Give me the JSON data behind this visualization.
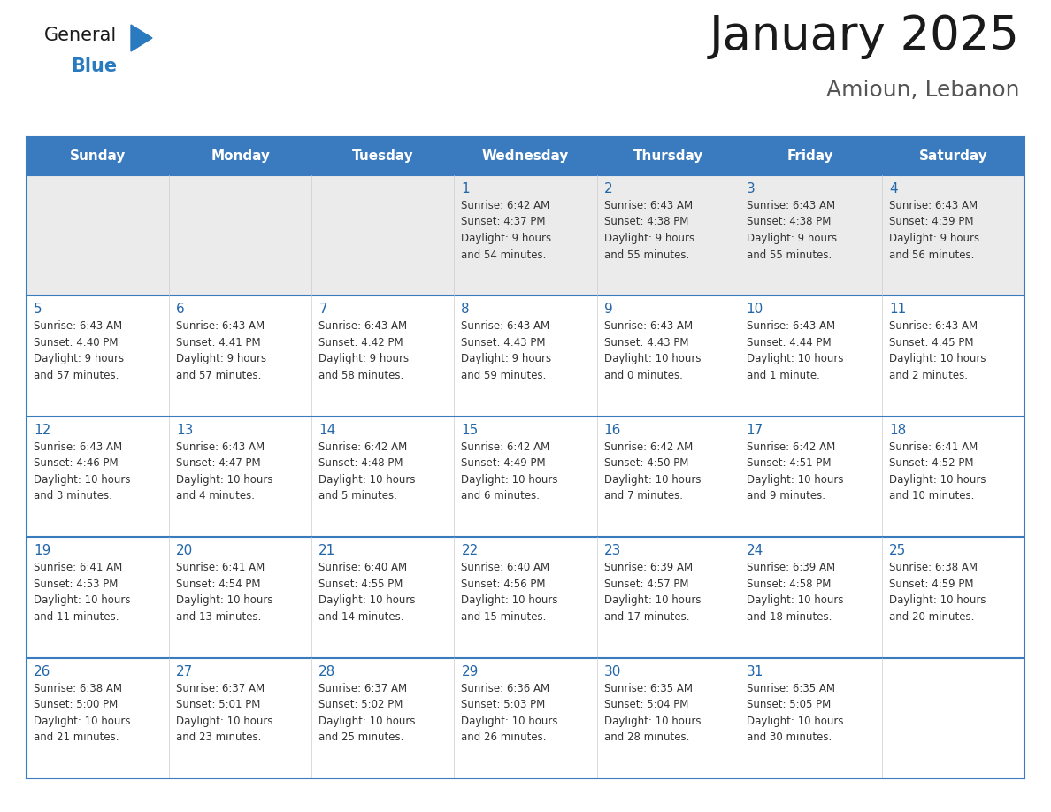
{
  "title": "January 2025",
  "subtitle": "Amioun, Lebanon",
  "days_of_week": [
    "Sunday",
    "Monday",
    "Tuesday",
    "Wednesday",
    "Thursday",
    "Friday",
    "Saturday"
  ],
  "header_bg": "#3a7abf",
  "header_text": "#ffffff",
  "row1_bg": "#ebebeb",
  "cell_bg": "#ffffff",
  "border_color": "#3a7abf",
  "day_num_color": "#2266aa",
  "cell_text_color": "#333333",
  "title_color": "#1a1a1a",
  "subtitle_color": "#555555",
  "logo_general_color": "#1a1a1a",
  "logo_blue_color": "#2a7abf",
  "logo_triangle_color": "#2a7abf",
  "weeks": [
    [
      {
        "day": "",
        "info": ""
      },
      {
        "day": "",
        "info": ""
      },
      {
        "day": "",
        "info": ""
      },
      {
        "day": "1",
        "info": "Sunrise: 6:42 AM\nSunset: 4:37 PM\nDaylight: 9 hours\nand 54 minutes."
      },
      {
        "day": "2",
        "info": "Sunrise: 6:43 AM\nSunset: 4:38 PM\nDaylight: 9 hours\nand 55 minutes."
      },
      {
        "day": "3",
        "info": "Sunrise: 6:43 AM\nSunset: 4:38 PM\nDaylight: 9 hours\nand 55 minutes."
      },
      {
        "day": "4",
        "info": "Sunrise: 6:43 AM\nSunset: 4:39 PM\nDaylight: 9 hours\nand 56 minutes."
      }
    ],
    [
      {
        "day": "5",
        "info": "Sunrise: 6:43 AM\nSunset: 4:40 PM\nDaylight: 9 hours\nand 57 minutes."
      },
      {
        "day": "6",
        "info": "Sunrise: 6:43 AM\nSunset: 4:41 PM\nDaylight: 9 hours\nand 57 minutes."
      },
      {
        "day": "7",
        "info": "Sunrise: 6:43 AM\nSunset: 4:42 PM\nDaylight: 9 hours\nand 58 minutes."
      },
      {
        "day": "8",
        "info": "Sunrise: 6:43 AM\nSunset: 4:43 PM\nDaylight: 9 hours\nand 59 minutes."
      },
      {
        "day": "9",
        "info": "Sunrise: 6:43 AM\nSunset: 4:43 PM\nDaylight: 10 hours\nand 0 minutes."
      },
      {
        "day": "10",
        "info": "Sunrise: 6:43 AM\nSunset: 4:44 PM\nDaylight: 10 hours\nand 1 minute."
      },
      {
        "day": "11",
        "info": "Sunrise: 6:43 AM\nSunset: 4:45 PM\nDaylight: 10 hours\nand 2 minutes."
      }
    ],
    [
      {
        "day": "12",
        "info": "Sunrise: 6:43 AM\nSunset: 4:46 PM\nDaylight: 10 hours\nand 3 minutes."
      },
      {
        "day": "13",
        "info": "Sunrise: 6:43 AM\nSunset: 4:47 PM\nDaylight: 10 hours\nand 4 minutes."
      },
      {
        "day": "14",
        "info": "Sunrise: 6:42 AM\nSunset: 4:48 PM\nDaylight: 10 hours\nand 5 minutes."
      },
      {
        "day": "15",
        "info": "Sunrise: 6:42 AM\nSunset: 4:49 PM\nDaylight: 10 hours\nand 6 minutes."
      },
      {
        "day": "16",
        "info": "Sunrise: 6:42 AM\nSunset: 4:50 PM\nDaylight: 10 hours\nand 7 minutes."
      },
      {
        "day": "17",
        "info": "Sunrise: 6:42 AM\nSunset: 4:51 PM\nDaylight: 10 hours\nand 9 minutes."
      },
      {
        "day": "18",
        "info": "Sunrise: 6:41 AM\nSunset: 4:52 PM\nDaylight: 10 hours\nand 10 minutes."
      }
    ],
    [
      {
        "day": "19",
        "info": "Sunrise: 6:41 AM\nSunset: 4:53 PM\nDaylight: 10 hours\nand 11 minutes."
      },
      {
        "day": "20",
        "info": "Sunrise: 6:41 AM\nSunset: 4:54 PM\nDaylight: 10 hours\nand 13 minutes."
      },
      {
        "day": "21",
        "info": "Sunrise: 6:40 AM\nSunset: 4:55 PM\nDaylight: 10 hours\nand 14 minutes."
      },
      {
        "day": "22",
        "info": "Sunrise: 6:40 AM\nSunset: 4:56 PM\nDaylight: 10 hours\nand 15 minutes."
      },
      {
        "day": "23",
        "info": "Sunrise: 6:39 AM\nSunset: 4:57 PM\nDaylight: 10 hours\nand 17 minutes."
      },
      {
        "day": "24",
        "info": "Sunrise: 6:39 AM\nSunset: 4:58 PM\nDaylight: 10 hours\nand 18 minutes."
      },
      {
        "day": "25",
        "info": "Sunrise: 6:38 AM\nSunset: 4:59 PM\nDaylight: 10 hours\nand 20 minutes."
      }
    ],
    [
      {
        "day": "26",
        "info": "Sunrise: 6:38 AM\nSunset: 5:00 PM\nDaylight: 10 hours\nand 21 minutes."
      },
      {
        "day": "27",
        "info": "Sunrise: 6:37 AM\nSunset: 5:01 PM\nDaylight: 10 hours\nand 23 minutes."
      },
      {
        "day": "28",
        "info": "Sunrise: 6:37 AM\nSunset: 5:02 PM\nDaylight: 10 hours\nand 25 minutes."
      },
      {
        "day": "29",
        "info": "Sunrise: 6:36 AM\nSunset: 5:03 PM\nDaylight: 10 hours\nand 26 minutes."
      },
      {
        "day": "30",
        "info": "Sunrise: 6:35 AM\nSunset: 5:04 PM\nDaylight: 10 hours\nand 28 minutes."
      },
      {
        "day": "31",
        "info": "Sunrise: 6:35 AM\nSunset: 5:05 PM\nDaylight: 10 hours\nand 30 minutes."
      },
      {
        "day": "",
        "info": ""
      }
    ]
  ]
}
